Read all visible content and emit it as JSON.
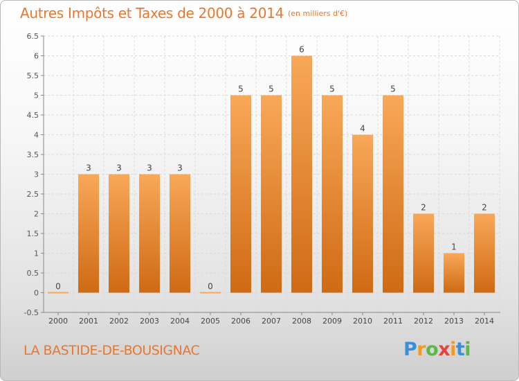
{
  "title": {
    "main": "Autres Impôts et Taxes de 2000 à 2014",
    "unit": "(en milliers d'€)"
  },
  "commune": "LA BASTIDE-DE-BOUSIGNAC",
  "logo": {
    "text": "Proxiti",
    "letters": [
      "P",
      "r",
      "o",
      "x",
      "i",
      "t",
      "i"
    ]
  },
  "colors": {
    "bar_light": "#f8a858",
    "bar_dark": "#cf6a14",
    "title": "#e8772e",
    "grid": "#d8d8d8"
  },
  "chart_data": {
    "type": "bar",
    "categories": [
      "2000",
      "2001",
      "2002",
      "2003",
      "2004",
      "2005",
      "2006",
      "2007",
      "2008",
      "2009",
      "2010",
      "2011",
      "2012",
      "2013",
      "2014"
    ],
    "values": [
      0,
      3,
      3,
      3,
      3,
      0,
      5,
      5,
      6,
      5,
      4,
      5,
      2,
      1,
      2
    ],
    "data_labels": [
      "0",
      "3",
      "3",
      "3",
      "3",
      "0",
      "5",
      "5",
      "6",
      "5",
      "4",
      "5",
      "2",
      "1",
      "2"
    ],
    "y_ticks": [
      "-0.5",
      "0",
      "0.5",
      "1",
      "1.5",
      "2",
      "2.5",
      "3",
      "3.5",
      "4",
      "4.5",
      "5",
      "5.5",
      "6",
      "6.5"
    ],
    "ylim": [
      -0.5,
      6.5
    ],
    "grid": true,
    "legend": "none"
  }
}
